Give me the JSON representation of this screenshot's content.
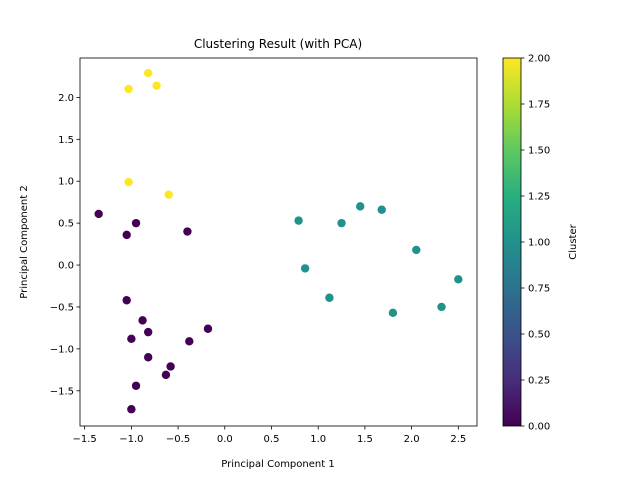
{
  "chart_data": {
    "type": "scatter",
    "title": "Clustering Result (with PCA)",
    "xlabel": "Principal Component 1",
    "ylabel": "Principal Component 2",
    "xlim": [
      -1.55,
      2.7
    ],
    "ylim": [
      -1.92,
      2.47
    ],
    "xticks": [
      -1.5,
      -1.0,
      -0.5,
      0.0,
      0.5,
      1.0,
      1.5,
      2.0,
      2.5
    ],
    "xtick_labels": [
      "−1.5",
      "−1.0",
      "−0.5",
      "0.0",
      "0.5",
      "1.0",
      "1.5",
      "2.0",
      "2.5"
    ],
    "yticks": [
      -1.5,
      -1.0,
      -0.5,
      0.0,
      0.5,
      1.0,
      1.5,
      2.0
    ],
    "ytick_labels": [
      "−1.5",
      "−1.0",
      "−0.5",
      "0.0",
      "0.5",
      "1.0",
      "1.5",
      "2.0"
    ],
    "grid": false,
    "colorbar": {
      "label": "Cluster",
      "range": [
        0.0,
        2.0
      ],
      "ticks": [
        0.0,
        0.25,
        0.5,
        0.75,
        1.0,
        1.25,
        1.5,
        1.75,
        2.0
      ],
      "tick_labels": [
        "0.00",
        "0.25",
        "0.50",
        "0.75",
        "1.00",
        "1.25",
        "1.50",
        "1.75",
        "2.00"
      ],
      "colormap": "viridis"
    },
    "series": [
      {
        "name": "Cluster 0",
        "cluster": 0,
        "color": "#440154",
        "points": [
          [
            -1.35,
            0.61
          ],
          [
            -0.95,
            0.5
          ],
          [
            -1.05,
            0.36
          ],
          [
            -0.4,
            0.4
          ],
          [
            -1.05,
            -0.42
          ],
          [
            -0.88,
            -0.66
          ],
          [
            -0.82,
            -0.8
          ],
          [
            -1.0,
            -0.88
          ],
          [
            -0.38,
            -0.91
          ],
          [
            -0.18,
            -0.76
          ],
          [
            -0.82,
            -1.1
          ],
          [
            -0.58,
            -1.21
          ],
          [
            -0.63,
            -1.31
          ],
          [
            -0.95,
            -1.44
          ],
          [
            -1.0,
            -1.72
          ]
        ]
      },
      {
        "name": "Cluster 1",
        "cluster": 1,
        "color": "#21918c",
        "points": [
          [
            0.79,
            0.53
          ],
          [
            1.45,
            0.7
          ],
          [
            1.68,
            0.66
          ],
          [
            1.25,
            0.5
          ],
          [
            2.05,
            0.18
          ],
          [
            0.86,
            -0.04
          ],
          [
            2.5,
            -0.17
          ],
          [
            1.12,
            -0.39
          ],
          [
            2.32,
            -0.5
          ],
          [
            1.8,
            -0.57
          ]
        ]
      },
      {
        "name": "Cluster 2",
        "cluster": 2,
        "color": "#fde725",
        "points": [
          [
            -0.82,
            2.29
          ],
          [
            -1.03,
            2.1
          ],
          [
            -0.73,
            2.14
          ],
          [
            -1.03,
            0.99
          ],
          [
            -0.6,
            0.84
          ]
        ]
      }
    ]
  }
}
